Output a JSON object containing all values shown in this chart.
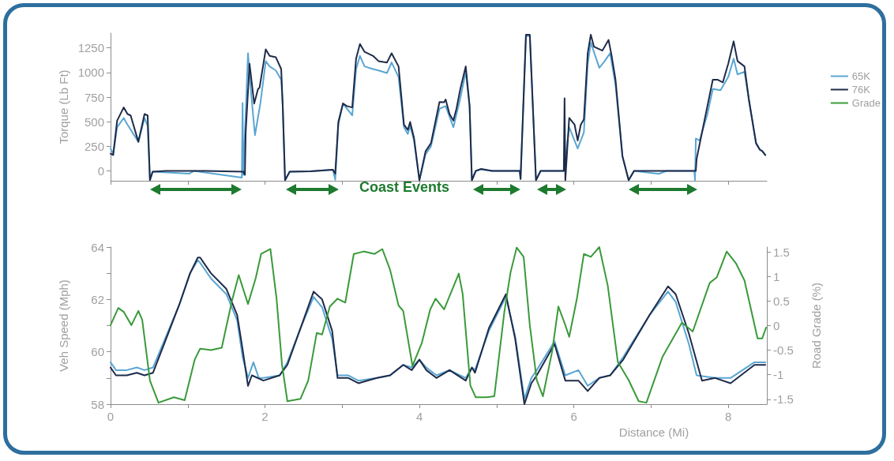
{
  "chart_data": [
    {
      "type": "line",
      "ylabel": "Torque (Lb Ft)",
      "annotations": [
        "Coast Events"
      ],
      "xlim": [
        0,
        8.5
      ],
      "xticks": [
        {
          "value": 0,
          "label": null
        },
        {
          "value": 1,
          "label": null
        },
        {
          "value": 2,
          "label": null
        },
        {
          "value": 3,
          "label": null
        },
        {
          "value": 4,
          "label": null
        },
        {
          "value": 5,
          "label": null
        },
        {
          "value": 6,
          "label": null
        },
        {
          "value": 7,
          "label": null
        },
        {
          "value": 8,
          "label": null
        }
      ],
      "ylim": [
        -100,
        1400
      ],
      "yticks": [
        0,
        250,
        500,
        750,
        1000,
        1250
      ],
      "tick_labels": "y",
      "grid": false,
      "legend": false,
      "marker": "none",
      "line_style": "solid",
      "series": [
        {
          "color": "#5aa6d2",
          "x": [
            0,
            0.034,
            0.085,
            0.17,
            0.22,
            0.36,
            0.44,
            0.48,
            0.51,
            0.545,
            1.02,
            1.08,
            1.7,
            1.71,
            1.72,
            1.78,
            1.82,
            1.87,
            1.94,
            2.01,
            2.06,
            2.14,
            2.21,
            2.23,
            2.26,
            2.32,
            2.59,
            2.88,
            2.91,
            2.95,
            3.01,
            3.13,
            3.18,
            3.23,
            3.29,
            3.4,
            3.47,
            3.58,
            3.64,
            3.73,
            3.8,
            3.85,
            3.88,
            3.93,
            4.0,
            4.08,
            4.15,
            4.26,
            4.34,
            4.44,
            4.53,
            4.6,
            4.65,
            4.68,
            4.73,
            4.8,
            4.94,
            5.3,
            5.31,
            5.38,
            5.43,
            5.51,
            5.57,
            5.87,
            5.94,
            6.05,
            6.13,
            6.18,
            6.22,
            6.26,
            6.33,
            6.4,
            6.47,
            6.54,
            6.63,
            6.71,
            6.78,
            7.1,
            7.2,
            7.56,
            7.57,
            7.58,
            7.63,
            7.73,
            7.8,
            7.9,
            8.0,
            8.07,
            8.12,
            8.21,
            8.28,
            8.36,
            8.41,
            8.44,
            8.48
          ],
          "values": [
            228,
            175,
            444,
            538,
            470,
            296,
            538,
            457,
            -94,
            -8,
            -27,
            0,
            -67,
            690,
            -40,
            1196,
            793,
            363,
            685,
            1116,
            1062,
            1021,
            927,
            659,
            -94,
            -8,
            -3,
            13,
            -90,
            470,
            685,
            564,
            1035,
            1169,
            1062,
            1035,
            1021,
            995,
            1102,
            954,
            444,
            376,
            457,
            309,
            -94,
            170,
            250,
            632,
            659,
            444,
            739,
            1008,
            659,
            -94,
            0,
            15,
            0,
            0,
            -81,
            1370,
            1370,
            -94,
            0,
            0,
            444,
            228,
            390,
            1089,
            1304,
            1210,
            1048,
            1116,
            1196,
            874,
            148,
            -94,
            0,
            -30,
            0,
            0,
            -94,
            330,
            309,
            578,
            833,
            820,
            954,
            1142,
            981,
            1008,
            659,
            282,
            215,
            202,
            161
          ]
        },
        {
          "color": "#1f2b4a",
          "x": [
            0,
            0.034,
            0.085,
            0.17,
            0.22,
            0.26,
            0.36,
            0.44,
            0.48,
            0.51,
            0.545,
            0.715,
            1.23,
            1.72,
            1.74,
            1.75,
            1.8,
            1.86,
            1.91,
            1.93,
            2.01,
            2.06,
            2.14,
            2.21,
            2.23,
            2.26,
            2.32,
            2.59,
            2.88,
            2.91,
            2.95,
            3.01,
            3.06,
            3.13,
            3.18,
            3.23,
            3.29,
            3.4,
            3.47,
            3.58,
            3.64,
            3.73,
            3.8,
            3.85,
            3.88,
            3.93,
            4.0,
            4.08,
            4.15,
            4.26,
            4.32,
            4.34,
            4.39,
            4.44,
            4.48,
            4.53,
            4.6,
            4.65,
            4.68,
            4.73,
            4.8,
            4.94,
            5.3,
            5.31,
            5.38,
            5.43,
            5.51,
            5.57,
            5.87,
            5.88,
            5.89,
            5.94,
            6.01,
            6.05,
            6.09,
            6.13,
            6.18,
            6.22,
            6.26,
            6.37,
            6.45,
            6.49,
            6.54,
            6.63,
            6.71,
            6.78,
            7.58,
            7.59,
            7.66,
            7.73,
            7.8,
            7.86,
            7.93,
            8.0,
            8.07,
            8.12,
            8.21,
            8.27,
            8.36,
            8.41,
            8.44,
            8.48
          ],
          "values": [
            175,
            161,
            511,
            645,
            578,
            564,
            296,
            578,
            564,
            -94,
            -8,
            0,
            0,
            -8,
            -40,
            390,
            1089,
            685,
            833,
            847,
            1236,
            1169,
            1156,
            1035,
            659,
            -94,
            -8,
            -3,
            13,
            -27,
            497,
            685,
            659,
            645,
            1142,
            1290,
            1210,
            1169,
            1116,
            1102,
            1196,
            1062,
            470,
            417,
            497,
            336,
            -94,
            200,
            282,
            700,
            699,
            726,
            578,
            511,
            632,
            833,
            1062,
            659,
            -94,
            0,
            21,
            0,
            0,
            -81,
            1384,
            1384,
            -94,
            0,
            0,
            739,
            -94,
            538,
            470,
            309,
            470,
            524,
            1196,
            1384,
            1263,
            1223,
            1331,
            1169,
            927,
            148,
            -94,
            0,
            0,
            121,
            390,
            659,
            927,
            927,
            900,
            1089,
            1317,
            1116,
            1062,
            712,
            282,
            215,
            202,
            161
          ]
        }
      ]
    },
    {
      "type": "line",
      "xlabel": "Distance (Mi)",
      "ylabel": "Veh Speed (Mph)",
      "y2label": "Road Grade (%)",
      "xlim": [
        0,
        8.5
      ],
      "xticks": [
        0,
        {
          "value": 1,
          "label": null
        },
        2,
        {
          "value": 3,
          "label": null
        },
        4,
        {
          "value": 5,
          "label": null
        },
        6,
        {
          "value": 7,
          "label": null
        },
        8
      ],
      "ylim": [
        58,
        64
      ],
      "yticks": [
        58,
        {
          "value": 59,
          "label": null
        },
        60,
        {
          "value": 61,
          "label": null
        },
        62,
        {
          "value": 63,
          "label": null
        },
        64
      ],
      "y2lim": [
        -1.6,
        1.6
      ],
      "y2ticks": [
        -1.5,
        -1,
        -0.5,
        0,
        0.5,
        1,
        1.5
      ],
      "grid": false,
      "legend": "top right",
      "marker": "none",
      "line_style": "solid",
      "series": [
        {
          "name": "65K",
          "color": "#5aa6d2",
          "x": [
            0,
            0.07,
            0.21,
            0.34,
            0.44,
            0.55,
            0.72,
            0.89,
            1.03,
            1.13,
            1.16,
            1.3,
            1.5,
            1.64,
            1.71,
            1.78,
            1.85,
            1.92,
            1.98,
            2.19,
            2.29,
            2.46,
            2.63,
            2.74,
            2.87,
            2.94,
            3.08,
            3.21,
            3.45,
            3.62,
            3.79,
            3.9,
            4.0,
            4.09,
            4.22,
            4.39,
            4.6,
            4.68,
            4.72,
            4.9,
            5.12,
            5.24,
            5.36,
            5.45,
            5.52,
            5.75,
            5.89,
            6.06,
            6.18,
            6.33,
            6.47,
            6.64,
            6.98,
            7.22,
            7.32,
            7.49,
            7.59,
            7.83,
            8.03,
            8.34,
            8.48
          ],
          "values": [
            59.6,
            59.3,
            59.3,
            59.4,
            59.3,
            59.4,
            60.6,
            61.8,
            63.0,
            63.5,
            63.4,
            62.8,
            62.2,
            61.2,
            59.8,
            59.0,
            59.6,
            59.0,
            59.0,
            59.1,
            59.6,
            60.9,
            62.1,
            61.7,
            60.5,
            59.1,
            59.1,
            58.9,
            59.0,
            59.1,
            59.5,
            59.4,
            59.7,
            59.4,
            59.1,
            59.3,
            59.0,
            59.4,
            59.3,
            60.8,
            62.1,
            60.6,
            58.2,
            59.0,
            59.3,
            60.4,
            59.1,
            59.3,
            58.7,
            59.0,
            59.1,
            59.8,
            61.4,
            62.3,
            61.9,
            60.3,
            59.1,
            59.0,
            59.0,
            59.6,
            59.6
          ]
        },
        {
          "name": "76K",
          "color": "#1f2b4a",
          "x": [
            0,
            0.07,
            0.21,
            0.34,
            0.44,
            0.55,
            0.72,
            0.89,
            1.03,
            1.13,
            1.16,
            1.3,
            1.5,
            1.64,
            1.71,
            1.78,
            1.83,
            1.98,
            2.19,
            2.29,
            2.46,
            2.63,
            2.74,
            2.87,
            2.94,
            3.08,
            3.21,
            3.45,
            3.62,
            3.79,
            3.9,
            4.0,
            4.09,
            4.22,
            4.39,
            4.6,
            4.68,
            4.72,
            4.9,
            5.12,
            5.24,
            5.36,
            5.45,
            5.52,
            5.75,
            5.89,
            6.06,
            6.18,
            6.33,
            6.47,
            6.64,
            6.98,
            7.22,
            7.32,
            7.49,
            7.66,
            7.83,
            8.03,
            8.34,
            8.48
          ],
          "values": [
            59.4,
            59.1,
            59.1,
            59.2,
            59.1,
            59.2,
            60.5,
            61.8,
            63.0,
            63.6,
            63.6,
            63.0,
            62.4,
            61.4,
            60.1,
            58.7,
            59.1,
            58.9,
            59.1,
            59.5,
            60.9,
            62.3,
            62.0,
            60.8,
            59.0,
            59.0,
            58.8,
            59.0,
            59.1,
            59.5,
            59.3,
            59.7,
            59.3,
            59.0,
            59.3,
            58.9,
            59.4,
            59.2,
            60.9,
            62.2,
            60.5,
            58.0,
            58.8,
            59.1,
            60.3,
            58.9,
            58.9,
            58.5,
            59.0,
            59.1,
            59.7,
            61.4,
            62.5,
            62.2,
            60.7,
            58.9,
            59.0,
            58.8,
            59.5,
            59.5
          ]
        },
        {
          "name": "Grade",
          "color": "#3a9a3a",
          "axis": "y2",
          "x": [
            0,
            0.1,
            0.17,
            0.27,
            0.36,
            0.41,
            0.51,
            0.62,
            0.82,
            0.96,
            1.09,
            1.16,
            1.3,
            1.44,
            1.57,
            1.66,
            1.78,
            1.88,
            1.95,
            2.07,
            2.15,
            2.22,
            2.29,
            2.46,
            2.56,
            2.67,
            2.74,
            2.84,
            2.94,
            3.04,
            3.15,
            3.28,
            3.42,
            3.52,
            3.62,
            3.73,
            3.79,
            3.91,
            4.03,
            4.14,
            4.21,
            4.32,
            4.51,
            4.56,
            4.66,
            4.73,
            4.87,
            4.97,
            5.1,
            5.18,
            5.26,
            5.35,
            5.43,
            5.52,
            5.6,
            5.72,
            5.8,
            5.89,
            5.94,
            6.04,
            6.13,
            6.22,
            6.33,
            6.44,
            6.57,
            6.71,
            6.84,
            6.94,
            7.15,
            7.4,
            7.54,
            7.76,
            7.85,
            7.98,
            8.1,
            8.21,
            8.38,
            8.44,
            8.49
          ],
          "values": [
            0.01,
            0.36,
            0.28,
            0.01,
            0.3,
            0.12,
            -1.12,
            -1.57,
            -1.46,
            -1.52,
            -0.69,
            -0.47,
            -0.5,
            -0.45,
            0.49,
            1.03,
            0.44,
            0.97,
            1.46,
            1.56,
            0.55,
            -0.79,
            -1.54,
            -1.49,
            -1.12,
            -0.15,
            -0.18,
            0.39,
            0.55,
            0.47,
            1.46,
            1.51,
            1.46,
            1.56,
            1.14,
            0.41,
            0.3,
            -0.82,
            -0.36,
            0.33,
            0.55,
            0.33,
            1.06,
            0.65,
            -1.22,
            -1.46,
            -1.46,
            -1.44,
            0.28,
            1.08,
            1.59,
            1.4,
            0.01,
            -1.11,
            -1.44,
            -0.52,
            0.39,
            0.01,
            -0.23,
            0.55,
            1.46,
            1.4,
            1.6,
            0.81,
            -0.74,
            -1.11,
            -1.54,
            -1.57,
            -0.63,
            0.06,
            -0.12,
            0.87,
            0.98,
            1.51,
            1.27,
            0.92,
            -0.26,
            -0.26,
            -0.04
          ]
        }
      ]
    }
  ]
}
